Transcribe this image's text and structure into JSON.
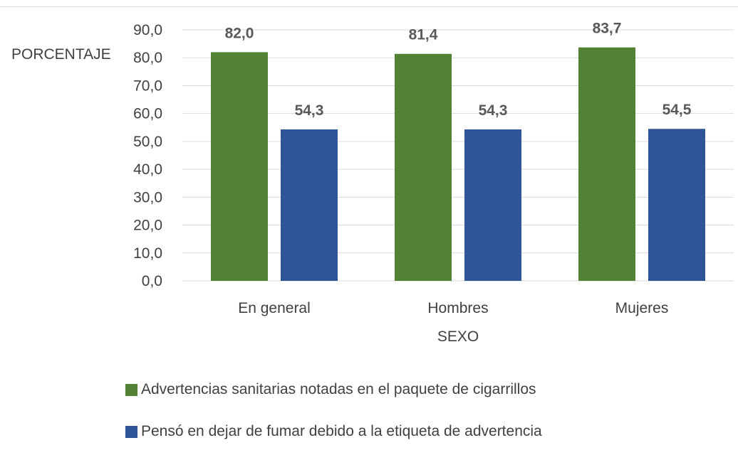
{
  "chart_data": {
    "type": "bar",
    "categories": [
      "En general",
      "Hombres",
      "Mujeres"
    ],
    "series": [
      {
        "name": "Advertencias sanitarias notadas en el paquete de cigarrillos",
        "values": [
          82.0,
          81.4,
          83.7
        ],
        "value_labels": [
          "82,0",
          "81,4",
          "83,7"
        ],
        "color": "#548235"
      },
      {
        "name": "Pensó en dejar de fumar debido a la etiqueta de advertencia",
        "values": [
          54.3,
          54.3,
          54.5
        ],
        "value_labels": [
          "54,3",
          "54,3",
          "54,5"
        ],
        "color": "#2f5597"
      }
    ],
    "xlabel": "SEXO",
    "ylabel": "PORCENTAJE",
    "ylim": [
      0,
      90
    ],
    "yticks": [
      0,
      10,
      20,
      30,
      40,
      50,
      60,
      70,
      80,
      90
    ],
    "ytick_labels": [
      "0,0",
      "10,0",
      "20,0",
      "30,0",
      "40,0",
      "50,0",
      "60,0",
      "70,0",
      "80,0",
      "90,0"
    ],
    "grid": true,
    "legend_position": "bottom"
  }
}
